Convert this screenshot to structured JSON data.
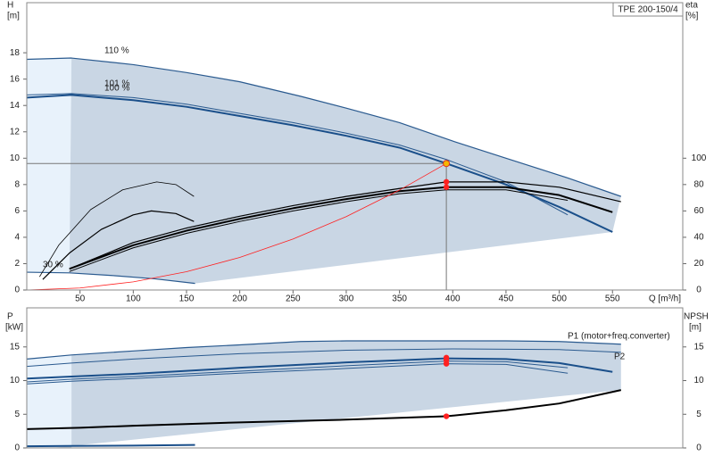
{
  "chart_data": [
    {
      "type": "line",
      "title": "TPE 200-150/4",
      "xlabel": "Q [m³/h]",
      "ylabel": "H",
      "yunit": "[m]",
      "y2label": "eta",
      "y2unit": "[%]",
      "xlim": [
        0,
        616
      ],
      "xticks": [
        50,
        100,
        150,
        200,
        250,
        300,
        350,
        400,
        450,
        500,
        550
      ],
      "ylim": [
        0,
        21.8
      ],
      "yticks": [
        0,
        2,
        4,
        6,
        8,
        10,
        12,
        14,
        16,
        18
      ],
      "y2lim": [
        0,
        218
      ],
      "y2ticks": [
        0,
        20,
        40,
        60,
        80,
        100
      ],
      "series": [
        {
          "name": "110 %",
          "color": "#2a5a8f",
          "width": 1.2,
          "x": [
            0,
            42,
            100,
            150,
            200,
            257,
            300,
            350,
            400,
            450,
            508,
            558
          ],
          "values": [
            17.5,
            17.6,
            17.1,
            16.5,
            15.8,
            14.7,
            13.8,
            12.7,
            11.3,
            10.0,
            8.5,
            7.1
          ]
        },
        {
          "name": "101 %",
          "color": "#2a5a8f",
          "width": 1,
          "x": [
            0,
            42,
            100,
            150,
            200,
            250,
            300,
            350,
            394,
            450,
            508
          ],
          "values": [
            14.8,
            14.9,
            14.6,
            14.1,
            13.4,
            12.7,
            11.9,
            11.0,
            9.9,
            8.2,
            5.7
          ]
        },
        {
          "name": "100 %",
          "color": "#1a4f8a",
          "width": 2,
          "x": [
            0,
            42,
            100,
            150,
            200,
            250,
            300,
            350,
            394,
            450,
            500,
            550
          ],
          "values": [
            14.6,
            14.8,
            14.4,
            13.9,
            13.2,
            12.5,
            11.7,
            10.8,
            9.6,
            8.0,
            6.3,
            4.4
          ]
        },
        {
          "name": "30 %",
          "color": "#2a5a8f",
          "width": 1.2,
          "x": [
            0,
            40,
            80,
            120,
            158
          ],
          "values": [
            1.35,
            1.3,
            1.1,
            0.85,
            0.5
          ]
        },
        {
          "color": "#000000",
          "width": 1.2,
          "axis": "y2",
          "x": [
            40,
            100,
            150,
            200,
            250,
            300,
            350,
            394,
            450,
            500,
            558
          ],
          "values": [
            16,
            36,
            47,
            56,
            64,
            71,
            77,
            82,
            82,
            78,
            67
          ]
        },
        {
          "color": "#000000",
          "width": 2,
          "axis": "y2",
          "x": [
            40,
            100,
            150,
            200,
            250,
            300,
            350,
            394,
            450,
            500,
            550
          ],
          "values": [
            16,
            34,
            45,
            54,
            62,
            69,
            75,
            78,
            78,
            72,
            59
          ]
        },
        {
          "color": "#000000",
          "width": 1,
          "axis": "y2",
          "x": [
            40,
            100,
            150,
            200,
            250,
            300,
            350,
            394,
            450,
            508
          ],
          "values": [
            14,
            32,
            43,
            52,
            60,
            67,
            73,
            76,
            76,
            68
          ]
        },
        {
          "color": "#000000",
          "width": 0.8,
          "axis": "y2",
          "x": [
            12,
            30,
            60,
            90,
            122,
            140,
            157
          ],
          "values": [
            10,
            34,
            61,
            76,
            82,
            80,
            71
          ]
        },
        {
          "color": "#000000",
          "width": 1.2,
          "axis": "y2",
          "x": [
            15,
            40,
            70,
            100,
            117,
            140,
            157
          ],
          "values": [
            8,
            28,
            46,
            57,
            60,
            58,
            52
          ]
        },
        {
          "color": "#ff2020",
          "width": 0.8,
          "x": [
            0,
            50,
            100,
            150,
            200,
            250,
            300,
            350,
            394
          ],
          "values": [
            0,
            0.15,
            0.62,
            1.39,
            2.47,
            3.87,
            5.57,
            7.58,
            9.6
          ]
        },
        {
          "color": "#ff2020",
          "style": "points",
          "axis": "y2",
          "x": [
            394,
            394
          ],
          "values": [
            82,
            78
          ]
        }
      ],
      "duty_point": {
        "x": 394,
        "y": 9.6,
        "color": "#f5b800"
      }
    },
    {
      "type": "line",
      "ylabel": "P",
      "yunit": "[kW]",
      "y2label": "NPSH",
      "y2unit": "[m]",
      "xlim": [
        0,
        616
      ],
      "ylim": [
        0,
        20.8
      ],
      "yticks": [
        0,
        5,
        10,
        15
      ],
      "y2lim": [
        0,
        20.8
      ],
      "y2ticks": [
        0,
        5,
        10,
        15
      ],
      "series": [
        {
          "name": "P1 (motor+freq.converter)",
          "color": "#2a5a8f",
          "width": 1.2,
          "x": [
            0,
            42,
            100,
            150,
            200,
            257,
            300,
            350,
            400,
            450,
            500,
            558
          ],
          "values": [
            13.2,
            13.8,
            14.4,
            14.9,
            15.3,
            15.8,
            15.9,
            15.9,
            15.9,
            15.9,
            15.8,
            15.4
          ]
        },
        {
          "name": "P2",
          "color": "#2a5a8f",
          "width": 1,
          "x": [
            0,
            42,
            100,
            200,
            300,
            400,
            500,
            558
          ],
          "values": [
            12.1,
            12.6,
            13.2,
            14.0,
            14.5,
            14.7,
            14.6,
            14.2
          ]
        },
        {
          "color": "#1a4f8a",
          "width": 2,
          "x": [
            0,
            42,
            100,
            200,
            300,
            394,
            450,
            500,
            550
          ],
          "values": [
            10.3,
            10.6,
            11.0,
            11.9,
            12.7,
            13.3,
            13.2,
            12.6,
            11.3
          ]
        },
        {
          "color": "#2a5a8f",
          "width": 1,
          "x": [
            0,
            42,
            100,
            200,
            300,
            394,
            450,
            508
          ],
          "values": [
            9.8,
            10.2,
            10.6,
            11.4,
            12.2,
            12.9,
            12.8,
            11.9
          ]
        },
        {
          "color": "#2a5a8f",
          "width": 1,
          "x": [
            0,
            42,
            100,
            200,
            300,
            394,
            450,
            508
          ],
          "values": [
            9.5,
            9.9,
            10.3,
            11.1,
            11.8,
            12.5,
            12.4,
            11.1
          ]
        },
        {
          "color": "#1a4f8a",
          "width": 2,
          "x": [
            0,
            40,
            100,
            158
          ],
          "values": [
            0.25,
            0.3,
            0.35,
            0.45
          ]
        },
        {
          "color": "#000000",
          "width": 2,
          "axis": "y2",
          "x": [
            0,
            50,
            100,
            200,
            300,
            394,
            450,
            500,
            558
          ],
          "values": [
            2.8,
            3.0,
            3.3,
            3.8,
            4.2,
            4.7,
            5.6,
            6.6,
            8.6
          ]
        },
        {
          "color": "#ff2020",
          "style": "points",
          "x": [
            394,
            394,
            394
          ],
          "values": [
            13.4,
            13.0,
            12.5
          ]
        },
        {
          "color": "#ff2020",
          "style": "points",
          "axis": "y2",
          "x": [
            394
          ],
          "values": [
            4.7
          ]
        }
      ]
    }
  ]
}
